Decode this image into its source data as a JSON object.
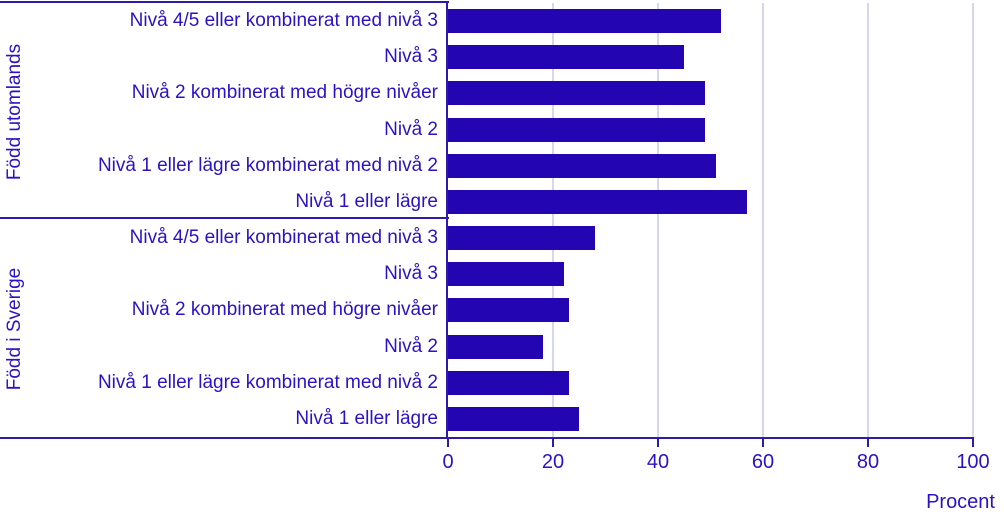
{
  "chart_data": {
    "type": "bar",
    "orientation": "horizontal",
    "title": "",
    "xlabel": "Procent",
    "xlim": [
      0,
      100
    ],
    "x_ticks": [
      0,
      20,
      40,
      60,
      80,
      100
    ],
    "grid": "vertical-gridlines-on",
    "legend": "none",
    "groups": [
      {
        "label": "Född utomlands",
        "categories": [
          "Nivå 4/5 eller kombinerat med nivå 3",
          "Nivå 3",
          "Nivå 2 kombinerat med högre nivåer",
          "Nivå 2",
          "Nivå 1 eller lägre kombinerat med nivå 2",
          "Nivå 1 eller lägre"
        ],
        "values": [
          52,
          45,
          49,
          49,
          51,
          57
        ]
      },
      {
        "label": "Född i Sverige",
        "categories": [
          "Nivå 4/5 eller kombinerat med nivå 3",
          "Nivå 3",
          "Nivå 2 kombinerat med högre nivåer",
          "Nivå 2",
          "Nivå 1 eller lägre kombinerat med nivå 2",
          "Nivå 1 eller lägre"
        ],
        "values": [
          28,
          22,
          23,
          18,
          23,
          25
        ]
      }
    ],
    "colors": {
      "bar": "#2405b2",
      "text": "#2a13c5",
      "axis": "#2d1bae",
      "gridline": "#d6d7ee",
      "background": "#ffffff"
    }
  }
}
